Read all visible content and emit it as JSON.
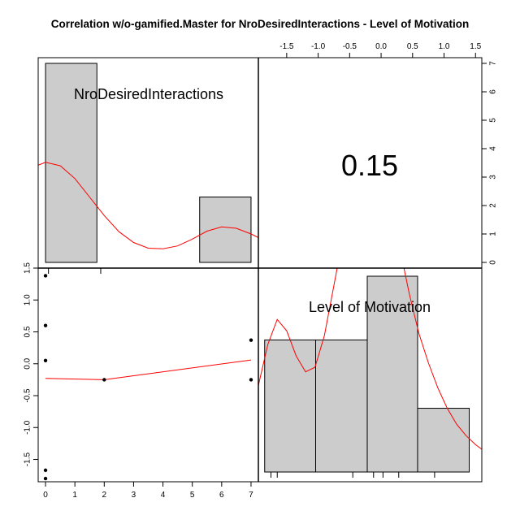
{
  "chart_data": {
    "type": "scatter-matrix",
    "title": "Correlation w/o-gamified.Master for NroDesiredInteractions - Level of Motivation",
    "variables": [
      "NroDesiredInteractions",
      "Level of Motivation"
    ],
    "correlation": "0.15",
    "colors": {
      "bars": "#cccccc",
      "smooth": "#ff0000",
      "points": "#000000",
      "frame": "#000000"
    },
    "x_axis": {
      "range": [
        -0.25,
        7.25
      ],
      "ticks": [
        "0",
        "1",
        "2",
        "3",
        "4",
        "5",
        "6",
        "7"
      ]
    },
    "y_axis": {
      "range": [
        -1.85,
        1.5
      ],
      "ticks": [
        "-1.5",
        "-1.0",
        "-0.5",
        "0.0",
        "0.5",
        "1.0",
        "1.5"
      ]
    },
    "top_axis": {
      "range": [
        -1.95,
        1.6
      ],
      "ticks": [
        "-1.5",
        "-1.0",
        "-0.5",
        "0.0",
        "0.5",
        "1.0",
        "1.5"
      ]
    },
    "right_axis": {
      "range": [
        -0.2,
        7.2
      ],
      "ticks": [
        "0",
        "1",
        "2",
        "3",
        "4",
        "5",
        "6",
        "7"
      ]
    },
    "hist_nro": {
      "bins": [
        [
          0,
          1.75,
          7
        ],
        [
          5.25,
          7,
          2.3
        ]
      ],
      "density": [
        [
          -0.3,
          3.4
        ],
        [
          0,
          3.52
        ],
        [
          0.5,
          3.4
        ],
        [
          1,
          2.95
        ],
        [
          1.5,
          2.3
        ],
        [
          2,
          1.65
        ],
        [
          2.5,
          1.08
        ],
        [
          3,
          0.7
        ],
        [
          3.5,
          0.5
        ],
        [
          4,
          0.48
        ],
        [
          4.5,
          0.58
        ],
        [
          5,
          0.82
        ],
        [
          5.5,
          1.1
        ],
        [
          6,
          1.25
        ],
        [
          6.5,
          1.2
        ],
        [
          7,
          1.0
        ],
        [
          7.3,
          0.85
        ]
      ]
    },
    "hist_motivation": {
      "bins": [
        [
          -1.85,
          -1.04,
          2.9
        ],
        [
          -1.04,
          -0.22,
          2.9
        ],
        [
          -0.22,
          0.58,
          4.3
        ],
        [
          0.58,
          1.4,
          1.4
        ]
      ],
      "density": [
        [
          -1.95,
          1.9
        ],
        [
          -1.8,
          2.8
        ],
        [
          -1.65,
          3.35
        ],
        [
          -1.5,
          3.1
        ],
        [
          -1.35,
          2.55
        ],
        [
          -1.2,
          2.2
        ],
        [
          -1.05,
          2.3
        ],
        [
          -0.9,
          3.0
        ],
        [
          -0.75,
          4.1
        ],
        [
          -0.6,
          5.2
        ],
        [
          -0.45,
          6.0
        ],
        [
          -0.3,
          6.4
        ],
        [
          -0.15,
          6.6
        ],
        [
          0.0,
          6.45
        ],
        [
          0.15,
          5.8
        ],
        [
          0.3,
          4.9
        ],
        [
          0.45,
          3.9
        ],
        [
          0.6,
          3.05
        ],
        [
          0.75,
          2.4
        ],
        [
          0.9,
          1.85
        ],
        [
          1.05,
          1.4
        ],
        [
          1.2,
          1.05
        ],
        [
          1.35,
          0.8
        ],
        [
          1.5,
          0.6
        ],
        [
          1.6,
          0.5
        ]
      ],
      "rug": [
        -1.75,
        -1.65,
        -0.45,
        -0.12,
        0.03,
        0.28,
        0.85
      ]
    },
    "scatter": {
      "points": [
        [
          0,
          1.38
        ],
        [
          0,
          0.6
        ],
        [
          0,
          0.05
        ],
        [
          0,
          -1.67
        ],
        [
          0,
          -1.8
        ],
        [
          2,
          -0.25
        ],
        [
          7,
          0.37
        ],
        [
          7,
          -0.25
        ]
      ],
      "smooth": [
        [
          0,
          -0.23
        ],
        [
          2,
          -0.25
        ],
        [
          7,
          0.06
        ]
      ],
      "rug": [
        0.1,
        1.88
      ]
    }
  }
}
